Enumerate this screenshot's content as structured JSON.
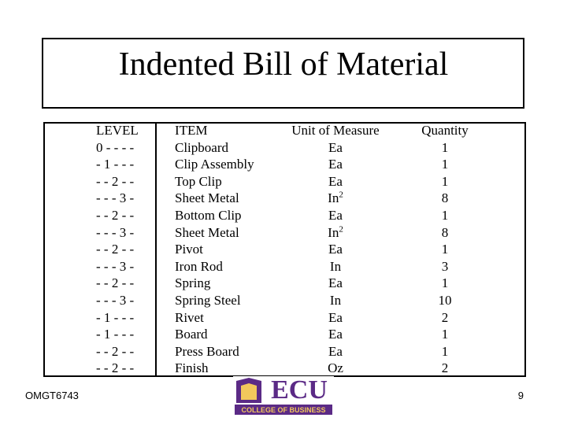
{
  "title": "Indented Bill of Material",
  "table": {
    "header": [
      "LEVEL",
      "ITEM",
      "Unit of Measure",
      "Quantity"
    ],
    "rows": [
      [
        "0 - - - -",
        "Clipboard",
        "Ea",
        1
      ],
      [
        "- 1 - - -",
        "Clip Assembly",
        "Ea",
        1
      ],
      [
        "- - 2 - -",
        "Top Clip",
        "Ea",
        1
      ],
      [
        "- - - 3 -",
        "Sheet Metal",
        {
          "base": "In",
          "sup": "2"
        },
        8
      ],
      [
        "- - 2 - -",
        "Bottom Clip",
        "Ea",
        1
      ],
      [
        "- - - 3 -",
        "Sheet Metal",
        {
          "base": "In",
          "sup": "2"
        },
        8
      ],
      [
        "- - 2 - -",
        "Pivot",
        "Ea",
        1
      ],
      [
        "- - - 3 -",
        "Iron Rod",
        "In",
        3
      ],
      [
        "- - 2 - -",
        "Spring",
        "Ea",
        1
      ],
      [
        "- - - 3 -",
        "Spring Steel",
        "In",
        10
      ],
      [
        "- 1 - - -",
        "Rivet",
        "Ea",
        2
      ],
      [
        "- 1 - - -",
        "Board",
        "Ea",
        1
      ],
      [
        "- - 2 - -",
        "Press Board",
        "Ea",
        1
      ],
      [
        "- - 2 - -",
        "Finish",
        "Oz",
        2
      ]
    ]
  },
  "footer": {
    "course": "OMGT6743",
    "page": 9,
    "logo_main": "ECU",
    "logo_sub": "COLLEGE OF BUSINESS"
  }
}
